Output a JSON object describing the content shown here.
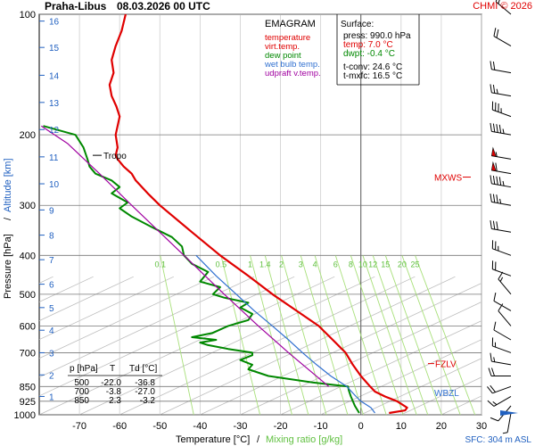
{
  "header": {
    "station": "Praha-Libus",
    "datetime": "08.03.2026 00 UTC",
    "copyright": "CHMI © 2026"
  },
  "legend": {
    "title": "EMAGRAM",
    "items": [
      {
        "label": "temperature",
        "color": "#e00000"
      },
      {
        "label": "virt.temp.",
        "color": "#e00000"
      },
      {
        "label": "dew point",
        "color": "#008800"
      },
      {
        "label": "wet bulb temp.",
        "color": "#3070d0"
      },
      {
        "label": "udpraft v.temp.",
        "color": "#a000a0"
      }
    ]
  },
  "surface": {
    "title": "Surface:",
    "press": "press: 990.0 hPa",
    "temp": "temp: 7.0 °C",
    "dwpt": "dwpt: -0.4 °C",
    "tconv": "t-conv: 24.6 °C",
    "tmxfc": "t-mxfc: 16.5 °C"
  },
  "table": {
    "headers": [
      "p [hPa]",
      "T",
      "Td [°C]"
    ],
    "rows": [
      [
        "500",
        "-22.0",
        "-36.8"
      ],
      [
        "700",
        "-3.8",
        "-27.0"
      ],
      [
        "850",
        "2.3",
        "-3.2"
      ]
    ]
  },
  "annotations": {
    "tropo": "Tropo",
    "mxws": "MXWS",
    "fzlv": "FZLV",
    "wbzl": "WBZL"
  },
  "footer": {
    "sfc": "SFC: 304 m ASL"
  },
  "chart_data": {
    "type": "line",
    "title": "EMAGRAM",
    "xlabel": "Temperature [°C]",
    "xlabel2": "Mixing ratio [g/kg]",
    "ylabel": "Pressure [hPa]",
    "ylabel2": "Altitude [km]",
    "xlim": [
      -80,
      30
    ],
    "ylim": [
      1000,
      100
    ],
    "y_scale": "log",
    "x_ticks": [
      -70,
      -60,
      -50,
      -40,
      -30,
      -20,
      -10,
      0,
      10,
      20,
      30
    ],
    "pressure_ticks": [
      1000,
      925,
      850,
      700,
      600,
      500,
      400,
      300,
      200,
      100
    ],
    "altitude_ticks": [
      {
        "km": "1",
        "p": 900
      },
      {
        "km": "2",
        "p": 795
      },
      {
        "km": "3",
        "p": 700
      },
      {
        "km": "4",
        "p": 615
      },
      {
        "km": "5",
        "p": 540
      },
      {
        "km": "6",
        "p": 472
      },
      {
        "km": "7",
        "p": 410
      },
      {
        "km": "8",
        "p": 356
      },
      {
        "km": "9",
        "p": 308
      },
      {
        "km": "10",
        "p": 265
      },
      {
        "km": "11",
        "p": 227
      },
      {
        "km": "12",
        "p": 194
      },
      {
        "km": "13",
        "p": 166
      },
      {
        "km": "14",
        "p": 142
      },
      {
        "km": "15",
        "p": 121
      },
      {
        "km": "16",
        "p": 104
      }
    ],
    "mixing_ratio_labels": [
      "0.1",
      "0.5",
      "1",
      "1.4",
      "2",
      "3",
      "4",
      "6",
      "8",
      "10",
      "12",
      "15",
      "20",
      "25"
    ],
    "mixing_ratio_values": [
      0.1,
      0.5,
      1,
      1.4,
      2,
      3,
      4,
      6,
      8,
      10,
      12,
      15,
      20,
      25
    ],
    "series": [
      {
        "name": "temperature",
        "color": "#e00000",
        "points": [
          [
            990,
            7.0
          ],
          [
            975,
            11.0
          ],
          [
            960,
            11.5
          ],
          [
            925,
            9.0
          ],
          [
            900,
            6.0
          ],
          [
            875,
            3.5
          ],
          [
            850,
            2.3
          ],
          [
            800,
            0.0
          ],
          [
            750,
            -2.0
          ],
          [
            700,
            -3.8
          ],
          [
            650,
            -7.0
          ],
          [
            600,
            -10.5
          ],
          [
            550,
            -16.0
          ],
          [
            500,
            -22.0
          ],
          [
            450,
            -28.0
          ],
          [
            400,
            -35.0
          ],
          [
            350,
            -42.0
          ],
          [
            300,
            -50.0
          ],
          [
            280,
            -53.0
          ],
          [
            260,
            -56.0
          ],
          [
            250,
            -57.0
          ],
          [
            240,
            -59.0
          ],
          [
            230,
            -60.5
          ],
          [
            225,
            -61.0
          ],
          [
            215,
            -60.5
          ],
          [
            200,
            -61.0
          ],
          [
            190,
            -60.5
          ],
          [
            180,
            -60.0
          ],
          [
            170,
            -60.8
          ],
          [
            160,
            -62.0
          ],
          [
            150,
            -62.5
          ],
          [
            140,
            -61.5
          ],
          [
            130,
            -62.0
          ],
          [
            120,
            -61.0
          ],
          [
            110,
            -59.5
          ],
          [
            100,
            -58.5
          ]
        ]
      },
      {
        "name": "dew point",
        "color": "#008800",
        "points": [
          [
            990,
            -0.4
          ],
          [
            950,
            -1.5
          ],
          [
            900,
            -2.5
          ],
          [
            870,
            -3.0
          ],
          [
            850,
            -3.2
          ],
          [
            830,
            -12.0
          ],
          [
            800,
            -23.0
          ],
          [
            770,
            -28.0
          ],
          [
            750,
            -27.0
          ],
          [
            730,
            -30.0
          ],
          [
            710,
            -27.0
          ],
          [
            700,
            -27.0
          ],
          [
            685,
            -33.0
          ],
          [
            670,
            -38.0
          ],
          [
            660,
            -40.0
          ],
          [
            650,
            -36.0
          ],
          [
            640,
            -42.0
          ],
          [
            625,
            -37.0
          ],
          [
            600,
            -33.0
          ],
          [
            580,
            -28.0
          ],
          [
            560,
            -27.0
          ],
          [
            540,
            -30.0
          ],
          [
            525,
            -28.0
          ],
          [
            510,
            -34.0
          ],
          [
            500,
            -36.8
          ],
          [
            480,
            -35.0
          ],
          [
            465,
            -40.0
          ],
          [
            440,
            -38.0
          ],
          [
            420,
            -42.0
          ],
          [
            400,
            -44.0
          ],
          [
            380,
            -44.5
          ],
          [
            360,
            -47.0
          ],
          [
            340,
            -52.0
          ],
          [
            320,
            -57.0
          ],
          [
            305,
            -60.0
          ],
          [
            295,
            -58.0
          ],
          [
            280,
            -62.0
          ],
          [
            270,
            -60.0
          ],
          [
            260,
            -62.0
          ],
          [
            250,
            -66.0
          ],
          [
            240,
            -67.5
          ],
          [
            230,
            -68.0
          ],
          [
            215,
            -69.0
          ],
          [
            200,
            -71.0
          ],
          [
            190,
            -79.0
          ]
        ]
      },
      {
        "name": "wet bulb temp.",
        "color": "#3070d0",
        "points": [
          [
            990,
            3.5
          ],
          [
            960,
            2.5
          ],
          [
            925,
            0.0
          ],
          [
            900,
            -1.2
          ],
          [
            850,
            -3.5
          ],
          [
            800,
            -7.5
          ],
          [
            750,
            -11.0
          ],
          [
            700,
            -14.5
          ],
          [
            650,
            -18.0
          ],
          [
            600,
            -22.0
          ],
          [
            550,
            -26.5
          ],
          [
            500,
            -31.0
          ],
          [
            450,
            -36.0
          ],
          [
            400,
            -41.0
          ]
        ]
      },
      {
        "name": "udpraft v.temp.",
        "color": "#a000a0",
        "points": [
          [
            850,
            -8.0
          ],
          [
            700,
            -18.0
          ],
          [
            600,
            -25.5
          ],
          [
            500,
            -34.0
          ],
          [
            400,
            -44.0
          ],
          [
            300,
            -57.0
          ],
          [
            250,
            -65.0
          ],
          [
            210,
            -73.0
          ],
          [
            190,
            -79.5
          ]
        ]
      }
    ],
    "wind_barbs": [
      {
        "p": 990,
        "dir": 190,
        "speed": 5
      },
      {
        "p": 950,
        "dir": 220,
        "speed": 10
      },
      {
        "p": 900,
        "dir": 240,
        "speed": 15
      },
      {
        "p": 850,
        "dir": 250,
        "speed": 20
      },
      {
        "p": 800,
        "dir": 270,
        "speed": 20
      },
      {
        "p": 750,
        "dir": 280,
        "speed": 15
      },
      {
        "p": 700,
        "dir": 290,
        "speed": 15
      },
      {
        "p": 650,
        "dir": 300,
        "speed": 10
      },
      {
        "p": 600,
        "dir": 320,
        "speed": 10
      },
      {
        "p": 550,
        "dir": 300,
        "speed": 10
      },
      {
        "p": 500,
        "dir": 320,
        "speed": 15
      },
      {
        "p": 450,
        "dir": 290,
        "speed": 20
      },
      {
        "p": 400,
        "dir": 290,
        "speed": 25
      },
      {
        "p": 350,
        "dir": 280,
        "speed": 30
      },
      {
        "p": 300,
        "dir": 280,
        "speed": 35
      },
      {
        "p": 270,
        "dir": 280,
        "speed": 45
      },
      {
        "p": 250,
        "dir": 280,
        "speed": 60
      },
      {
        "p": 230,
        "dir": 280,
        "speed": 55
      },
      {
        "p": 200,
        "dir": 280,
        "speed": 45
      },
      {
        "p": 180,
        "dir": 290,
        "speed": 35
      },
      {
        "p": 160,
        "dir": 280,
        "speed": 25
      },
      {
        "p": 140,
        "dir": 280,
        "speed": 20
      },
      {
        "p": 120,
        "dir": 300,
        "speed": 20
      },
      {
        "p": 100,
        "dir": 310,
        "speed": 15
      }
    ],
    "markers": {
      "tropopause_hpa": 225,
      "mxws_hpa": 255,
      "fzlv_hpa": 745,
      "wbzl_hpa": 880,
      "surface_hpa": 990
    }
  }
}
